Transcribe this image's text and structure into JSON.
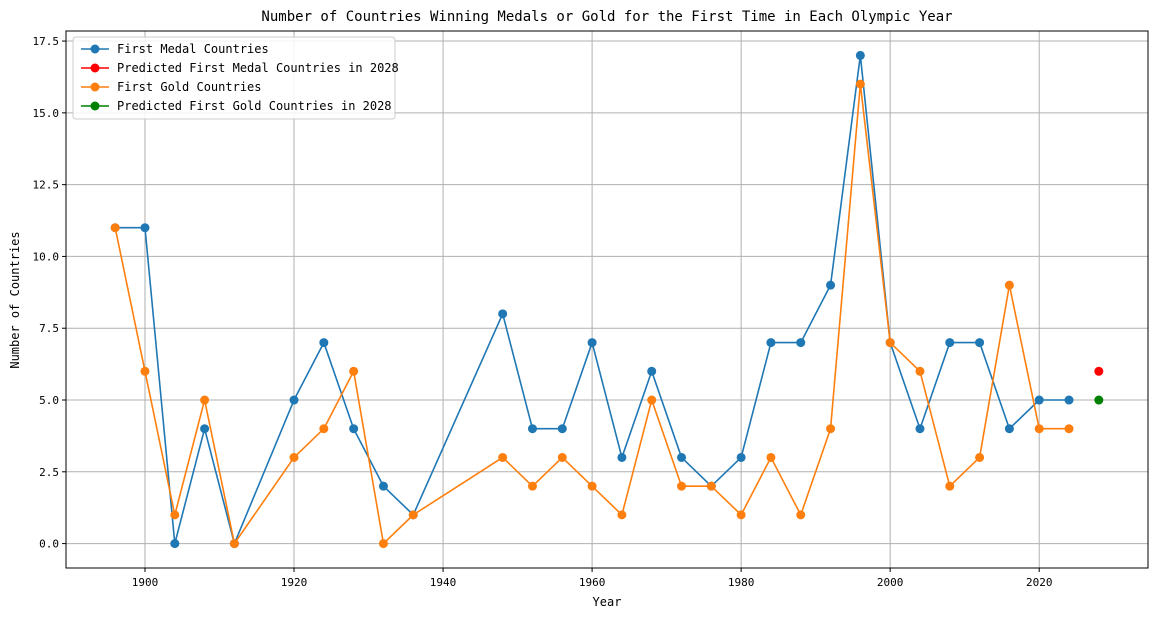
{
  "chart_data": {
    "type": "line",
    "title": "Number of Countries Winning Medals or Gold for the First Time in Each Olympic Year",
    "xlabel": "Year",
    "ylabel": "Number of Countries",
    "xlim": [
      1889.4,
      2034.6
    ],
    "ylim": [
      -0.85,
      17.85
    ],
    "xticks": [
      1900,
      1920,
      1940,
      1960,
      1980,
      2000,
      2020
    ],
    "xtick_labels": [
      "1900",
      "1920",
      "1940",
      "1960",
      "1980",
      "2000",
      "2020"
    ],
    "yticks": [
      0,
      2.5,
      5,
      7.5,
      10,
      12.5,
      15,
      17.5
    ],
    "ytick_labels": [
      "0.0",
      "2.5",
      "5.0",
      "7.5",
      "10.0",
      "12.5",
      "15.0",
      "17.5"
    ],
    "grid": true,
    "legend_position": "upper-left",
    "series": [
      {
        "name": "First Medal Countries",
        "color": "#1f77b4",
        "marker": "circle",
        "line": true,
        "x": [
          1896,
          1900,
          1904,
          1908,
          1912,
          1920,
          1924,
          1928,
          1932,
          1936,
          1948,
          1952,
          1956,
          1960,
          1964,
          1968,
          1972,
          1976,
          1980,
          1984,
          1988,
          1992,
          1996,
          2000,
          2004,
          2008,
          2012,
          2016,
          2020,
          2024
        ],
        "y": [
          11,
          11,
          0,
          4,
          0,
          5,
          7,
          4,
          2,
          1,
          8,
          4,
          4,
          7,
          3,
          6,
          3,
          2,
          3,
          7,
          7,
          9,
          17,
          7,
          4,
          7,
          7,
          4,
          5,
          5
        ]
      },
      {
        "name": "Predicted First Medal Countries in 2028",
        "color": "#ff0000",
        "marker": "circle",
        "line": false,
        "x": [
          2028
        ],
        "y": [
          6
        ]
      },
      {
        "name": "First Gold Countries",
        "color": "#ff7f0e",
        "marker": "circle",
        "line": true,
        "x": [
          1896,
          1900,
          1904,
          1908,
          1912,
          1920,
          1924,
          1928,
          1932,
          1936,
          1948,
          1952,
          1956,
          1960,
          1964,
          1968,
          1972,
          1976,
          1980,
          1984,
          1988,
          1992,
          1996,
          2000,
          2004,
          2008,
          2012,
          2016,
          2020,
          2024
        ],
        "y": [
          11,
          6,
          1,
          5,
          0,
          3,
          4,
          6,
          0,
          1,
          3,
          2,
          3,
          2,
          1,
          5,
          2,
          2,
          1,
          3,
          1,
          4,
          16,
          7,
          6,
          2,
          3,
          9,
          4,
          4
        ]
      },
      {
        "name": "Predicted First Gold Countries in 2028",
        "color": "#008000",
        "marker": "circle",
        "line": false,
        "x": [
          2028
        ],
        "y": [
          5
        ]
      }
    ]
  }
}
